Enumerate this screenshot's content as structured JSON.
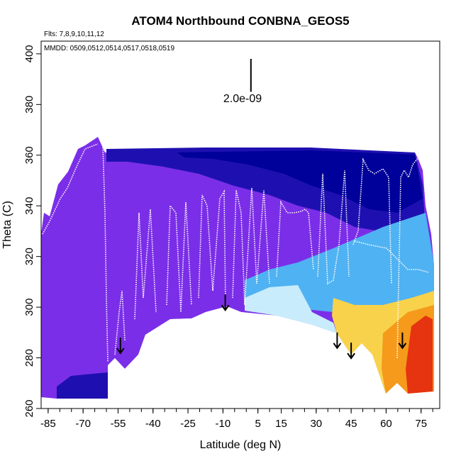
{
  "chart_data": {
    "type": "heatmap",
    "title": "ATOM4 Northbound CONBNA_GEOS5",
    "xlabel": "Latitude (deg N)",
    "ylabel": "Theta (C)",
    "xlim": [
      -88,
      83
    ],
    "ylim": [
      260,
      405
    ],
    "x_ticks": [
      -85,
      -70,
      -55,
      -40,
      -25,
      -10,
      5,
      15,
      30,
      45,
      60,
      75
    ],
    "x_tick_labels": [
      "-85",
      "-70",
      "-55",
      "-40",
      "-25",
      "-10",
      "5",
      "15",
      "30",
      "45",
      "60",
      "75"
    ],
    "y_ticks": [
      260,
      280,
      300,
      320,
      340,
      360,
      380,
      400
    ],
    "y_tick_labels": [
      "260",
      "280",
      "300",
      "320",
      "340",
      "360",
      "380",
      "400"
    ],
    "annotations": {
      "flights": "Flts: 7,8,9,10,11,12",
      "dates": "MMDD: 0509,0512,0514,0517,0518,0519",
      "scale_label": "2.0e-09"
    },
    "scale_bar": {
      "x": 2,
      "y_bottom": 385,
      "y_top": 398
    },
    "arrows": [
      {
        "lat": -54,
        "theta": 288
      },
      {
        "lat": -9,
        "theta": 305
      },
      {
        "lat": 39,
        "theta": 290
      },
      {
        "lat": 45,
        "theta": 286
      },
      {
        "lat": 67,
        "theta": 290
      }
    ],
    "colors": {
      "violet": "#7b2ee8",
      "dark_blue": "#1e10b0",
      "navy": "#00009a",
      "light_blue": "#4fb2f2",
      "pale_blue": "#c8ecfb",
      "yellow": "#f8d24a",
      "orange": "#f59a1b",
      "red": "#e63310"
    }
  }
}
